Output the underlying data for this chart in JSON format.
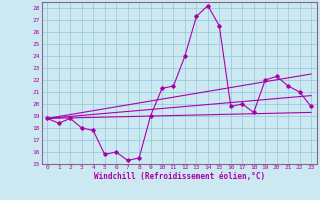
{
  "xlabel": "Windchill (Refroidissement éolien,°C)",
  "bg_color": "#cce8f0",
  "grid_color": "#99cce0",
  "line_color": "#aa00aa",
  "spine_color": "#886688",
  "xlim": [
    -0.5,
    23.5
  ],
  "ylim": [
    15,
    28.5
  ],
  "xticks": [
    0,
    1,
    2,
    3,
    4,
    5,
    6,
    7,
    8,
    9,
    10,
    11,
    12,
    13,
    14,
    15,
    16,
    17,
    18,
    19,
    20,
    21,
    22,
    23
  ],
  "yticks": [
    15,
    16,
    17,
    18,
    19,
    20,
    21,
    22,
    23,
    24,
    25,
    26,
    27,
    28
  ],
  "main_line_x": [
    0,
    1,
    2,
    3,
    4,
    5,
    6,
    7,
    8,
    9,
    10,
    11,
    12,
    13,
    14,
    15,
    16,
    17,
    18,
    19,
    20,
    21,
    22,
    23
  ],
  "main_line_y": [
    18.8,
    18.4,
    18.8,
    18.0,
    17.8,
    15.8,
    16.0,
    15.3,
    15.5,
    19.0,
    21.3,
    21.5,
    24.0,
    27.3,
    28.2,
    26.5,
    19.8,
    20.0,
    19.3,
    22.0,
    22.3,
    21.5,
    21.0,
    19.8
  ],
  "line2_x": [
    0,
    23
  ],
  "line2_y": [
    18.8,
    19.3
  ],
  "line3_x": [
    0,
    23
  ],
  "line3_y": [
    18.8,
    20.7
  ],
  "line4_x": [
    0,
    23
  ],
  "line4_y": [
    18.8,
    22.5
  ]
}
